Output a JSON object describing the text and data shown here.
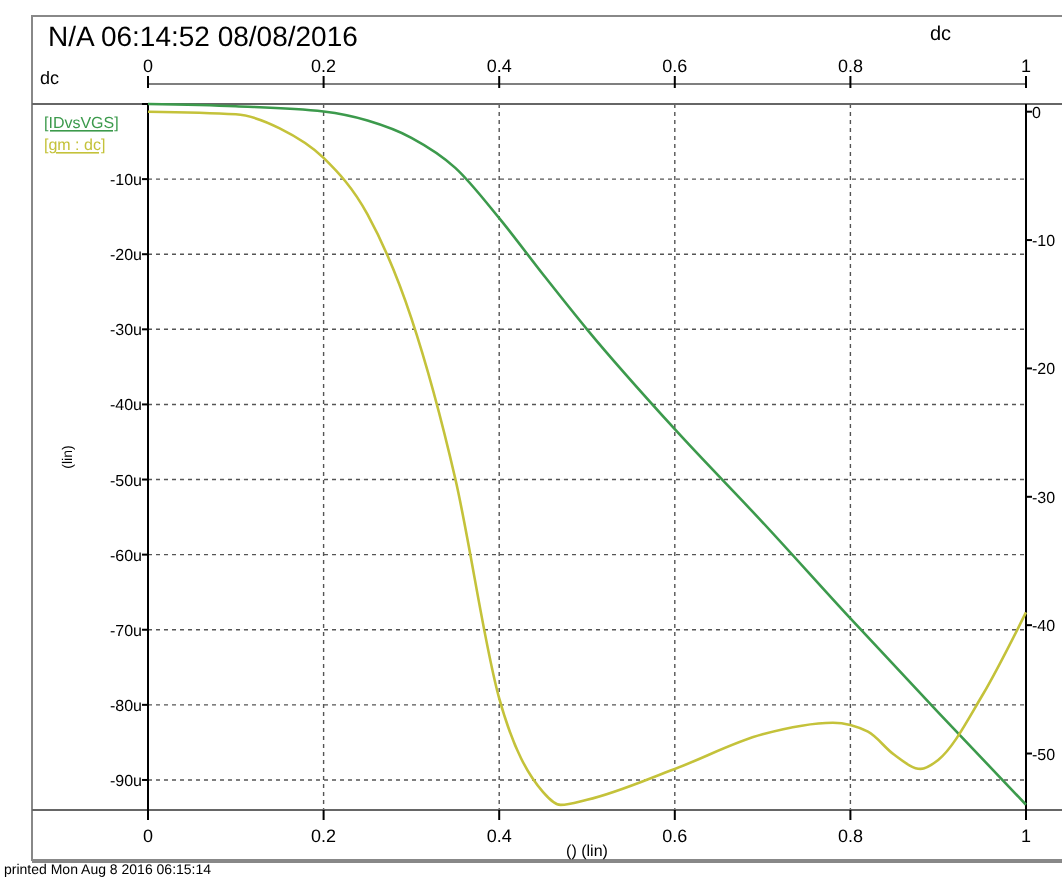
{
  "chart_data": {
    "type": "line",
    "title": "N/A 06:14:52 08/08/2016",
    "subtitle": "dc",
    "xlabel": "() (lin)",
    "ylabel": "(lin)",
    "annotations": [
      "dc",
      "printed Mon Aug 8 2016 06:15:14"
    ],
    "x": [
      0,
      0.1,
      0.15,
      0.2,
      0.25,
      0.3,
      0.35,
      0.4,
      0.45,
      0.47,
      0.5,
      0.6,
      0.7,
      0.78,
      0.82,
      0.85,
      0.88,
      0.9,
      0.95,
      1.0
    ],
    "series": [
      {
        "name": "[IDvsVGS]",
        "color": "#3c9a4c",
        "x": [
          0,
          0.1,
          0.2,
          0.25,
          0.3,
          0.35,
          0.4,
          0.45,
          0.5,
          0.6,
          0.7,
          0.8,
          0.9,
          1.0
        ],
        "values": [
          0,
          -0.3,
          -1,
          -2.2,
          -4.5,
          -8.5,
          -15.2,
          -22.7,
          -30,
          -43.3,
          -55.7,
          -68.5,
          -81,
          -93.3
        ]
      },
      {
        "name": "[gm : dc]",
        "color": "#c4c23a",
        "axis": "y2",
        "values": [
          0,
          -0.2,
          -1.3,
          -3.6,
          -8.0,
          -16.1,
          -28.6,
          -45.7,
          -53.0,
          -54.0,
          -53.6,
          -51.2,
          -48.5,
          -47.6,
          -48.3,
          -50.1,
          -51.2,
          -50.5,
          -45.5,
          -39.0
        ]
      }
    ],
    "xlim": [
      0,
      1
    ],
    "xticks": [
      0,
      0.2,
      0.4,
      0.6,
      0.8,
      1
    ],
    "x2lim": [
      0,
      1
    ],
    "x2ticks": [
      0,
      0.2,
      0.4,
      0.6,
      0.8,
      1
    ],
    "ylim": [
      -94,
      0
    ],
    "yticks": [
      {
        "value": 0,
        "label": null
      },
      {
        "value": -10,
        "label": "-10u"
      },
      {
        "value": -20,
        "label": "-20u"
      },
      {
        "value": -30,
        "label": "-30u"
      },
      {
        "value": -40,
        "label": "-40u"
      },
      {
        "value": -50,
        "label": "-50u"
      },
      {
        "value": -60,
        "label": "-60u"
      },
      {
        "value": -70,
        "label": "-70u"
      },
      {
        "value": -80,
        "label": "-80u"
      },
      {
        "value": -90,
        "label": "-90u"
      }
    ],
    "y2lim": [
      -54.4,
      0.6
    ],
    "y2ticks": [
      0,
      -10,
      -20,
      -30,
      -40,
      -50
    ],
    "grid": true,
    "legend": "top left",
    "line_style": "solid",
    "marker": "none"
  }
}
